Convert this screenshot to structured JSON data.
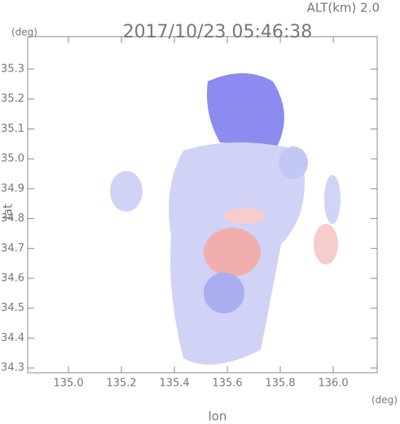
{
  "chart_data": {
    "type": "image",
    "title": "2017/10/23 05:46:38",
    "annotation": "ALT(km) 2.0",
    "y_unit": "(deg)",
    "x_unit": "(deg)",
    "xlabel": "lon",
    "ylabel": "lat",
    "xlim": [
      134.846,
      136.166
    ],
    "ylim": [
      34.284,
      35.409
    ],
    "xticks": [
      {
        "value": 135.0,
        "label": "135.0"
      },
      135.2,
      135.4,
      135.6,
      135.8,
      {
        "value": 136.0,
        "label": "136.0"
      }
    ],
    "yticks": [
      34.3,
      34.4,
      34.5,
      34.6,
      34.7,
      34.8,
      34.9,
      {
        "value": 35.0,
        "label": "35.0"
      },
      35.1,
      35.2,
      35.3
    ]
  }
}
